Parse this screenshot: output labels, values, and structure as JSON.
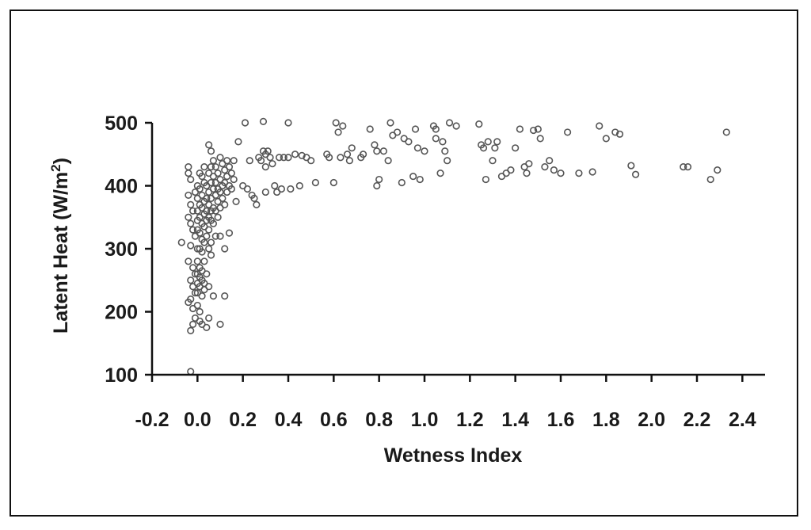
{
  "chart_data": {
    "type": "scatter",
    "title": "",
    "xlabel": "Wetness Index",
    "ylabel_main": "Latent Heat (W/m",
    "ylabel_sup": "2",
    "ylabel_close": ")",
    "xlim": [
      -0.2,
      2.5
    ],
    "ylim": [
      100,
      500
    ],
    "xticks": [
      -0.2,
      0.0,
      0.2,
      0.4,
      0.6,
      0.8,
      1.0,
      1.2,
      1.4,
      1.6,
      1.8,
      2.0,
      2.2,
      2.4
    ],
    "xtick_labels": [
      "-0.2",
      "0.0",
      "0.2",
      "0.4",
      "0.6",
      "0.8",
      "1.0",
      "1.2",
      "1.4",
      "1.6",
      "1.8",
      "2.0",
      "2.2",
      "2.4"
    ],
    "yticks": [
      100,
      200,
      300,
      400,
      500
    ],
    "ytick_labels": [
      "100",
      "200",
      "300",
      "400",
      "500"
    ],
    "grid": false,
    "legend": "none",
    "marker_color": "#555555",
    "axis_color": "#111111",
    "series": [
      {
        "points": [
          [
            -0.07,
            310
          ],
          [
            -0.04,
            430
          ],
          [
            -0.04,
            420
          ],
          [
            -0.03,
            410
          ],
          [
            -0.04,
            385
          ],
          [
            -0.03,
            370
          ],
          [
            -0.02,
            360
          ],
          [
            -0.04,
            350
          ],
          [
            -0.03,
            340
          ],
          [
            -0.02,
            330
          ],
          [
            -0.01,
            320
          ],
          [
            -0.03,
            305
          ],
          [
            -0.04,
            280
          ],
          [
            -0.02,
            270
          ],
          [
            -0.01,
            260
          ],
          [
            -0.03,
            250
          ],
          [
            -0.02,
            240
          ],
          [
            -0.01,
            230
          ],
          [
            -0.03,
            220
          ],
          [
            -0.04,
            215
          ],
          [
            -0.02,
            205
          ],
          [
            -0.01,
            190
          ],
          [
            -0.02,
            180
          ],
          [
            -0.03,
            170
          ],
          [
            -0.03,
            105
          ],
          [
            -0.01,
            390
          ],
          [
            0.0,
            400
          ],
          [
            0.0,
            380
          ],
          [
            0.0,
            360
          ],
          [
            0.0,
            345
          ],
          [
            0.0,
            330
          ],
          [
            0.0,
            300
          ],
          [
            0.0,
            280
          ],
          [
            0.0,
            260
          ],
          [
            0.0,
            245
          ],
          [
            0.0,
            230
          ],
          [
            0.0,
            210
          ],
          [
            0.01,
            420
          ],
          [
            0.01,
            395
          ],
          [
            0.01,
            370
          ],
          [
            0.01,
            350
          ],
          [
            0.01,
            325
          ],
          [
            0.01,
            300
          ],
          [
            0.01,
            270
          ],
          [
            0.01,
            255
          ],
          [
            0.01,
            240
          ],
          [
            0.01,
            200
          ],
          [
            0.01,
            185
          ],
          [
            0.02,
            415
          ],
          [
            0.02,
            385
          ],
          [
            0.02,
            365
          ],
          [
            0.02,
            340
          ],
          [
            0.02,
            315
          ],
          [
            0.02,
            295
          ],
          [
            0.02,
            265
          ],
          [
            0.02,
            250
          ],
          [
            0.02,
            225
          ],
          [
            0.02,
            180
          ],
          [
            0.03,
            430
          ],
          [
            0.03,
            405
          ],
          [
            0.03,
            375
          ],
          [
            0.03,
            355
          ],
          [
            0.03,
            335
          ],
          [
            0.03,
            310
          ],
          [
            0.03,
            280
          ],
          [
            0.03,
            245
          ],
          [
            0.03,
            235
          ],
          [
            0.04,
            400
          ],
          [
            0.04,
            380
          ],
          [
            0.04,
            360
          ],
          [
            0.04,
            345
          ],
          [
            0.04,
            320
          ],
          [
            0.04,
            260
          ],
          [
            0.04,
            175
          ],
          [
            0.05,
            465
          ],
          [
            0.05,
            420
          ],
          [
            0.05,
            390
          ],
          [
            0.05,
            370
          ],
          [
            0.05,
            350
          ],
          [
            0.05,
            330
          ],
          [
            0.05,
            300
          ],
          [
            0.05,
            240
          ],
          [
            0.05,
            190
          ],
          [
            0.06,
            455
          ],
          [
            0.06,
            430
          ],
          [
            0.06,
            405
          ],
          [
            0.06,
            380
          ],
          [
            0.06,
            360
          ],
          [
            0.06,
            345
          ],
          [
            0.06,
            310
          ],
          [
            0.06,
            290
          ],
          [
            0.07,
            440
          ],
          [
            0.07,
            415
          ],
          [
            0.07,
            395
          ],
          [
            0.07,
            365
          ],
          [
            0.07,
            340
          ],
          [
            0.07,
            225
          ],
          [
            0.08,
            430
          ],
          [
            0.08,
            405
          ],
          [
            0.08,
            385
          ],
          [
            0.08,
            360
          ],
          [
            0.08,
            320
          ],
          [
            0.09,
            420
          ],
          [
            0.09,
            395
          ],
          [
            0.09,
            375
          ],
          [
            0.09,
            350
          ],
          [
            0.1,
            445
          ],
          [
            0.1,
            410
          ],
          [
            0.1,
            390
          ],
          [
            0.1,
            365
          ],
          [
            0.1,
            320
          ],
          [
            0.1,
            180
          ],
          [
            0.11,
            435
          ],
          [
            0.11,
            400
          ],
          [
            0.11,
            380
          ],
          [
            0.12,
            425
          ],
          [
            0.12,
            405
          ],
          [
            0.12,
            370
          ],
          [
            0.12,
            300
          ],
          [
            0.12,
            225
          ],
          [
            0.13,
            440
          ],
          [
            0.13,
            415
          ],
          [
            0.13,
            390
          ],
          [
            0.14,
            430
          ],
          [
            0.14,
            400
          ],
          [
            0.14,
            325
          ],
          [
            0.15,
            420
          ],
          [
            0.15,
            395
          ],
          [
            0.16,
            440
          ],
          [
            0.16,
            410
          ],
          [
            0.17,
            375
          ],
          [
            0.18,
            470
          ],
          [
            0.2,
            400
          ],
          [
            0.21,
            500
          ],
          [
            0.22,
            395
          ],
          [
            0.23,
            440
          ],
          [
            0.24,
            385
          ],
          [
            0.25,
            380
          ],
          [
            0.26,
            370
          ],
          [
            0.27,
            445
          ],
          [
            0.28,
            440
          ],
          [
            0.29,
            455
          ],
          [
            0.29,
            502
          ],
          [
            0.3,
            450
          ],
          [
            0.3,
            430
          ],
          [
            0.3,
            390
          ],
          [
            0.31,
            455
          ],
          [
            0.32,
            445
          ],
          [
            0.33,
            435
          ],
          [
            0.34,
            400
          ],
          [
            0.35,
            390
          ],
          [
            0.36,
            445
          ],
          [
            0.37,
            395
          ],
          [
            0.38,
            445
          ],
          [
            0.4,
            445
          ],
          [
            0.4,
            500
          ],
          [
            0.41,
            395
          ],
          [
            0.43,
            450
          ],
          [
            0.45,
            400
          ],
          [
            0.46,
            448
          ],
          [
            0.48,
            445
          ],
          [
            0.5,
            440
          ],
          [
            0.52,
            405
          ],
          [
            0.57,
            450
          ],
          [
            0.58,
            445
          ],
          [
            0.6,
            405
          ],
          [
            0.61,
            500
          ],
          [
            0.62,
            485
          ],
          [
            0.63,
            445
          ],
          [
            0.64,
            495
          ],
          [
            0.66,
            450
          ],
          [
            0.67,
            440
          ],
          [
            0.68,
            460
          ],
          [
            0.72,
            445
          ],
          [
            0.73,
            450
          ],
          [
            0.76,
            490
          ],
          [
            0.78,
            465
          ],
          [
            0.79,
            455
          ],
          [
            0.79,
            400
          ],
          [
            0.8,
            410
          ],
          [
            0.82,
            455
          ],
          [
            0.84,
            440
          ],
          [
            0.85,
            500
          ],
          [
            0.86,
            480
          ],
          [
            0.88,
            485
          ],
          [
            0.9,
            405
          ],
          [
            0.91,
            475
          ],
          [
            0.93,
            470
          ],
          [
            0.95,
            415
          ],
          [
            0.96,
            490
          ],
          [
            0.97,
            460
          ],
          [
            0.98,
            410
          ],
          [
            1.0,
            455
          ],
          [
            1.04,
            495
          ],
          [
            1.05,
            490
          ],
          [
            1.05,
            475
          ],
          [
            1.07,
            420
          ],
          [
            1.08,
            470
          ],
          [
            1.09,
            455
          ],
          [
            1.1,
            440
          ],
          [
            1.11,
            500
          ],
          [
            1.14,
            495
          ],
          [
            1.24,
            498
          ],
          [
            1.25,
            465
          ],
          [
            1.26,
            460
          ],
          [
            1.27,
            410
          ],
          [
            1.28,
            470
          ],
          [
            1.3,
            440
          ],
          [
            1.31,
            460
          ],
          [
            1.32,
            470
          ],
          [
            1.34,
            415
          ],
          [
            1.36,
            420
          ],
          [
            1.38,
            425
          ],
          [
            1.4,
            460
          ],
          [
            1.42,
            490
          ],
          [
            1.44,
            430
          ],
          [
            1.45,
            420
          ],
          [
            1.46,
            435
          ],
          [
            1.48,
            488
          ],
          [
            1.5,
            490
          ],
          [
            1.51,
            475
          ],
          [
            1.53,
            430
          ],
          [
            1.55,
            440
          ],
          [
            1.57,
            425
          ],
          [
            1.6,
            420
          ],
          [
            1.63,
            485
          ],
          [
            1.68,
            420
          ],
          [
            1.74,
            422
          ],
          [
            1.77,
            495
          ],
          [
            1.8,
            475
          ],
          [
            1.84,
            485
          ],
          [
            1.86,
            482
          ],
          [
            1.91,
            432
          ],
          [
            1.93,
            418
          ],
          [
            2.14,
            430
          ],
          [
            2.16,
            430
          ],
          [
            2.26,
            410
          ],
          [
            2.29,
            425
          ],
          [
            2.33,
            485
          ]
        ]
      }
    ]
  }
}
